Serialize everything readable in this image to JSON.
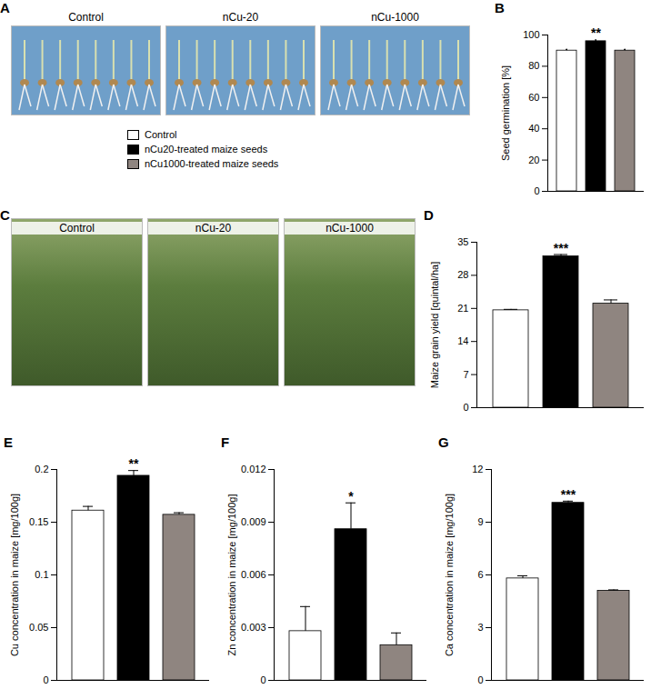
{
  "images": [
    {
      "panel": "A",
      "captions": [
        "Control",
        "nCu-20",
        "nCu-1000"
      ]
    },
    {
      "panel": "C",
      "captions": [
        "Control",
        "nCu-20",
        "nCu-1000"
      ]
    }
  ],
  "key": {
    "labels": [
      "Control",
      "nCu20-treated maize seeds",
      "nCu1000-treated maize seeds"
    ],
    "colors": [
      "#ffffff",
      "#000000",
      "#8f8580"
    ]
  },
  "chart_data": [
    {
      "type": "bar",
      "panel": "B",
      "y_label": "Seed germination [%]",
      "categories": [
        "Control",
        "nCu20-treated maize seeds",
        "nCu1000-treated maize seeds"
      ],
      "values": [
        90,
        96,
        90
      ],
      "errors": [
        0.8,
        0.8,
        0.8
      ],
      "annotations": [
        null,
        "**",
        null
      ],
      "colors": [
        "#ffffff",
        "#000000",
        "#8f8580"
      ],
      "ylim": [
        0,
        100
      ],
      "yticks": [
        0,
        20,
        40,
        60,
        80,
        100
      ],
      "tick_labels": "y",
      "grid": false
    },
    {
      "type": "bar",
      "panel": "D",
      "y_label": "Maize grain yield [quintal/ha]",
      "categories": [
        "Control",
        "nCu20-treated maize seeds",
        "nCu1000-treated maize seeds"
      ],
      "values": [
        20.6,
        32.0,
        22.0
      ],
      "errors": [
        0.2,
        0.4,
        0.8
      ],
      "annotations": [
        null,
        "***",
        null
      ],
      "colors": [
        "#ffffff",
        "#000000",
        "#8f8580"
      ],
      "ylim": [
        0,
        35
      ],
      "yticks": [
        0,
        7,
        14,
        21,
        28,
        35
      ],
      "tick_labels": "y",
      "grid": false
    },
    {
      "type": "bar",
      "panel": "E",
      "y_label": "Cu concentration in maize [mg/100g]",
      "categories": [
        "Control",
        "nCu20-treated maize seeds",
        "nCu1000-treated maize seeds"
      ],
      "values": [
        0.161,
        0.194,
        0.157
      ],
      "errors": [
        0.004,
        0.005,
        0.002
      ],
      "annotations": [
        null,
        "**",
        null
      ],
      "colors": [
        "#ffffff",
        "#000000",
        "#8f8580"
      ],
      "ylim": [
        0,
        0.2
      ],
      "yticks": [
        0,
        0.05,
        0.1,
        0.15,
        0.2
      ],
      "tick_labels": "y",
      "grid": false
    },
    {
      "type": "bar",
      "panel": "F",
      "y_label": "Zn concentration in maize [mg/100g]",
      "categories": [
        "Control",
        "nCu20-treated maize seeds",
        "nCu1000-treated maize seeds"
      ],
      "values": [
        0.0028,
        0.0086,
        0.002
      ],
      "errors": [
        0.0014,
        0.0015,
        0.0007
      ],
      "annotations": [
        null,
        "*",
        null
      ],
      "colors": [
        "#ffffff",
        "#000000",
        "#8f8580"
      ],
      "ylim": [
        0,
        0.012
      ],
      "yticks": [
        0,
        0.003,
        0.006,
        0.009,
        0.012
      ],
      "tick_labels": "y",
      "grid": false
    },
    {
      "type": "bar",
      "panel": "G",
      "y_label": "Ca concentration in maize [mg/100g]",
      "categories": [
        "Control",
        "nCu20-treated maize seeds",
        "nCu1000-treated maize seeds"
      ],
      "values": [
        5.8,
        10.1,
        5.1
      ],
      "errors": [
        0.15,
        0.1,
        0.05
      ],
      "annotations": [
        null,
        "***",
        null
      ],
      "colors": [
        "#ffffff",
        "#000000",
        "#8f8580"
      ],
      "ylim": [
        0,
        12
      ],
      "yticks": [
        0,
        3,
        6,
        9,
        12
      ],
      "tick_labels": "y",
      "grid": false
    }
  ]
}
